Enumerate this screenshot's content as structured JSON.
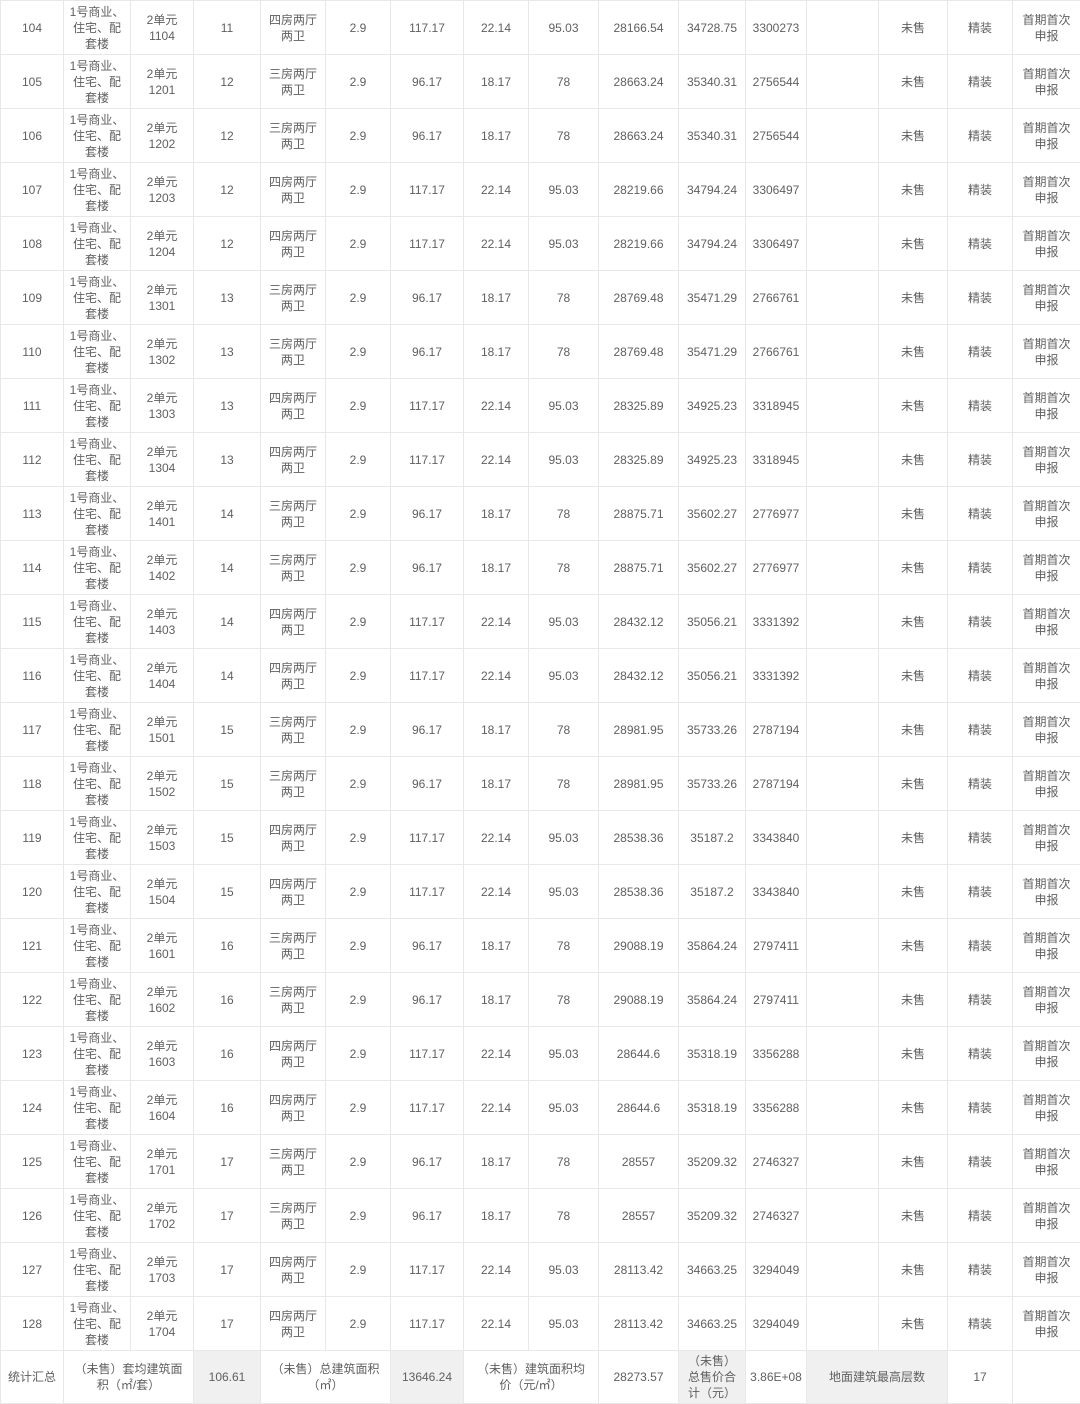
{
  "table": {
    "column_names": [
      "cell-row-number",
      "cell-building-name",
      "cell-unit-room",
      "cell-floor",
      "cell-room-layout",
      "cell-floor-height",
      "cell-build-area",
      "cell-shared-area",
      "cell-inner-area",
      "cell-unit-price-build-area",
      "cell-unit-price-inner-area",
      "cell-total-price",
      "cell-blank",
      "cell-sale-status",
      "cell-decoration-status",
      "cell-declaration-batch"
    ],
    "rows": [
      [
        "104",
        "1号商业、\n住宅、配\n套楼",
        "2单元\n1104",
        "11",
        "四房两厅\n两卫",
        "2.9",
        "117.17",
        "22.14",
        "95.03",
        "28166.54",
        "34728.75",
        "3300273",
        "",
        "未售",
        "精装",
        "首期首次\n申报"
      ],
      [
        "105",
        "1号商业、\n住宅、配\n套楼",
        "2单元\n1201",
        "12",
        "三房两厅\n两卫",
        "2.9",
        "96.17",
        "18.17",
        "78",
        "28663.24",
        "35340.31",
        "2756544",
        "",
        "未售",
        "精装",
        "首期首次\n申报"
      ],
      [
        "106",
        "1号商业、\n住宅、配\n套楼",
        "2单元\n1202",
        "12",
        "三房两厅\n两卫",
        "2.9",
        "96.17",
        "18.17",
        "78",
        "28663.24",
        "35340.31",
        "2756544",
        "",
        "未售",
        "精装",
        "首期首次\n申报"
      ],
      [
        "107",
        "1号商业、\n住宅、配\n套楼",
        "2单元\n1203",
        "12",
        "四房两厅\n两卫",
        "2.9",
        "117.17",
        "22.14",
        "95.03",
        "28219.66",
        "34794.24",
        "3306497",
        "",
        "未售",
        "精装",
        "首期首次\n申报"
      ],
      [
        "108",
        "1号商业、\n住宅、配\n套楼",
        "2单元\n1204",
        "12",
        "四房两厅\n两卫",
        "2.9",
        "117.17",
        "22.14",
        "95.03",
        "28219.66",
        "34794.24",
        "3306497",
        "",
        "未售",
        "精装",
        "首期首次\n申报"
      ],
      [
        "109",
        "1号商业、\n住宅、配\n套楼",
        "2单元\n1301",
        "13",
        "三房两厅\n两卫",
        "2.9",
        "96.17",
        "18.17",
        "78",
        "28769.48",
        "35471.29",
        "2766761",
        "",
        "未售",
        "精装",
        "首期首次\n申报"
      ],
      [
        "110",
        "1号商业、\n住宅、配\n套楼",
        "2单元\n1302",
        "13",
        "三房两厅\n两卫",
        "2.9",
        "96.17",
        "18.17",
        "78",
        "28769.48",
        "35471.29",
        "2766761",
        "",
        "未售",
        "精装",
        "首期首次\n申报"
      ],
      [
        "111",
        "1号商业、\n住宅、配\n套楼",
        "2单元\n1303",
        "13",
        "四房两厅\n两卫",
        "2.9",
        "117.17",
        "22.14",
        "95.03",
        "28325.89",
        "34925.23",
        "3318945",
        "",
        "未售",
        "精装",
        "首期首次\n申报"
      ],
      [
        "112",
        "1号商业、\n住宅、配\n套楼",
        "2单元\n1304",
        "13",
        "四房两厅\n两卫",
        "2.9",
        "117.17",
        "22.14",
        "95.03",
        "28325.89",
        "34925.23",
        "3318945",
        "",
        "未售",
        "精装",
        "首期首次\n申报"
      ],
      [
        "113",
        "1号商业、\n住宅、配\n套楼",
        "2单元\n1401",
        "14",
        "三房两厅\n两卫",
        "2.9",
        "96.17",
        "18.17",
        "78",
        "28875.71",
        "35602.27",
        "2776977",
        "",
        "未售",
        "精装",
        "首期首次\n申报"
      ],
      [
        "114",
        "1号商业、\n住宅、配\n套楼",
        "2单元\n1402",
        "14",
        "三房两厅\n两卫",
        "2.9",
        "96.17",
        "18.17",
        "78",
        "28875.71",
        "35602.27",
        "2776977",
        "",
        "未售",
        "精装",
        "首期首次\n申报"
      ],
      [
        "115",
        "1号商业、\n住宅、配\n套楼",
        "2单元\n1403",
        "14",
        "四房两厅\n两卫",
        "2.9",
        "117.17",
        "22.14",
        "95.03",
        "28432.12",
        "35056.21",
        "3331392",
        "",
        "未售",
        "精装",
        "首期首次\n申报"
      ],
      [
        "116",
        "1号商业、\n住宅、配\n套楼",
        "2单元\n1404",
        "14",
        "四房两厅\n两卫",
        "2.9",
        "117.17",
        "22.14",
        "95.03",
        "28432.12",
        "35056.21",
        "3331392",
        "",
        "未售",
        "精装",
        "首期首次\n申报"
      ],
      [
        "117",
        "1号商业、\n住宅、配\n套楼",
        "2单元\n1501",
        "15",
        "三房两厅\n两卫",
        "2.9",
        "96.17",
        "18.17",
        "78",
        "28981.95",
        "35733.26",
        "2787194",
        "",
        "未售",
        "精装",
        "首期首次\n申报"
      ],
      [
        "118",
        "1号商业、\n住宅、配\n套楼",
        "2单元\n1502",
        "15",
        "三房两厅\n两卫",
        "2.9",
        "96.17",
        "18.17",
        "78",
        "28981.95",
        "35733.26",
        "2787194",
        "",
        "未售",
        "精装",
        "首期首次\n申报"
      ],
      [
        "119",
        "1号商业、\n住宅、配\n套楼",
        "2单元\n1503",
        "15",
        "四房两厅\n两卫",
        "2.9",
        "117.17",
        "22.14",
        "95.03",
        "28538.36",
        "35187.2",
        "3343840",
        "",
        "未售",
        "精装",
        "首期首次\n申报"
      ],
      [
        "120",
        "1号商业、\n住宅、配\n套楼",
        "2单元\n1504",
        "15",
        "四房两厅\n两卫",
        "2.9",
        "117.17",
        "22.14",
        "95.03",
        "28538.36",
        "35187.2",
        "3343840",
        "",
        "未售",
        "精装",
        "首期首次\n申报"
      ],
      [
        "121",
        "1号商业、\n住宅、配\n套楼",
        "2单元\n1601",
        "16",
        "三房两厅\n两卫",
        "2.9",
        "96.17",
        "18.17",
        "78",
        "29088.19",
        "35864.24",
        "2797411",
        "",
        "未售",
        "精装",
        "首期首次\n申报"
      ],
      [
        "122",
        "1号商业、\n住宅、配\n套楼",
        "2单元\n1602",
        "16",
        "三房两厅\n两卫",
        "2.9",
        "96.17",
        "18.17",
        "78",
        "29088.19",
        "35864.24",
        "2797411",
        "",
        "未售",
        "精装",
        "首期首次\n申报"
      ],
      [
        "123",
        "1号商业、\n住宅、配\n套楼",
        "2单元\n1603",
        "16",
        "四房两厅\n两卫",
        "2.9",
        "117.17",
        "22.14",
        "95.03",
        "28644.6",
        "35318.19",
        "3356288",
        "",
        "未售",
        "精装",
        "首期首次\n申报"
      ],
      [
        "124",
        "1号商业、\n住宅、配\n套楼",
        "2单元\n1604",
        "16",
        "四房两厅\n两卫",
        "2.9",
        "117.17",
        "22.14",
        "95.03",
        "28644.6",
        "35318.19",
        "3356288",
        "",
        "未售",
        "精装",
        "首期首次\n申报"
      ],
      [
        "125",
        "1号商业、\n住宅、配\n套楼",
        "2单元\n1701",
        "17",
        "三房两厅\n两卫",
        "2.9",
        "96.17",
        "18.17",
        "78",
        "28557",
        "35209.32",
        "2746327",
        "",
        "未售",
        "精装",
        "首期首次\n申报"
      ],
      [
        "126",
        "1号商业、\n住宅、配\n套楼",
        "2单元\n1702",
        "17",
        "三房两厅\n两卫",
        "2.9",
        "96.17",
        "18.17",
        "78",
        "28557",
        "35209.32",
        "2746327",
        "",
        "未售",
        "精装",
        "首期首次\n申报"
      ],
      [
        "127",
        "1号商业、\n住宅、配\n套楼",
        "2单元\n1703",
        "17",
        "四房两厅\n两卫",
        "2.9",
        "117.17",
        "22.14",
        "95.03",
        "28113.42",
        "34663.25",
        "3294049",
        "",
        "未售",
        "精装",
        "首期首次\n申报"
      ],
      [
        "128",
        "1号商业、\n住宅、配\n套楼",
        "2单元\n1704",
        "17",
        "四房两厅\n两卫",
        "2.9",
        "117.17",
        "22.14",
        "95.03",
        "28113.42",
        "34663.25",
        "3294049",
        "",
        "未售",
        "精装",
        "首期首次\n申报"
      ]
    ],
    "summary": [
      {
        "text": "统计汇总",
        "span": 1,
        "shaded": false,
        "name": "summary-label-total"
      },
      {
        "text": "（未售）套均建筑面\n积（㎡/套）",
        "span": 2,
        "shaded": false,
        "name": "summary-label-avg-area-per-unit"
      },
      {
        "text": "106.61",
        "span": 1,
        "shaded": true,
        "name": "summary-value-avg-area-per-unit"
      },
      {
        "text": "（未售）总建筑面积\n（㎡）",
        "span": 2,
        "shaded": false,
        "name": "summary-label-total-build-area"
      },
      {
        "text": "13646.24",
        "span": 1,
        "shaded": true,
        "name": "summary-value-total-build-area"
      },
      {
        "text": "（未售）建筑面积均\n价（元/㎡）",
        "span": 2,
        "shaded": false,
        "name": "summary-label-avg-unit-price"
      },
      {
        "text": "28273.57",
        "span": 1,
        "shaded": false,
        "name": "summary-value-avg-unit-price"
      },
      {
        "text": "（未售）\n总售价合\n计（元）",
        "span": 1,
        "shaded": true,
        "name": "summary-label-total-sale-price"
      },
      {
        "text": "3.86E+08",
        "span": 1,
        "shaded": false,
        "name": "summary-value-total-sale-price"
      },
      {
        "text": "地面建筑最高层数",
        "span": 2,
        "shaded": true,
        "name": "summary-label-max-floors"
      },
      {
        "text": "17",
        "span": 1,
        "shaded": false,
        "name": "summary-value-max-floors"
      },
      {
        "text": "",
        "span": 1,
        "shaded": false,
        "name": "summary-blank"
      }
    ],
    "colors": {
      "border": "#e8e8e8",
      "text": "#5f5f5f",
      "shaded_cell_bg": "#f0f0f0",
      "cell_bg": "#ffffff"
    }
  }
}
